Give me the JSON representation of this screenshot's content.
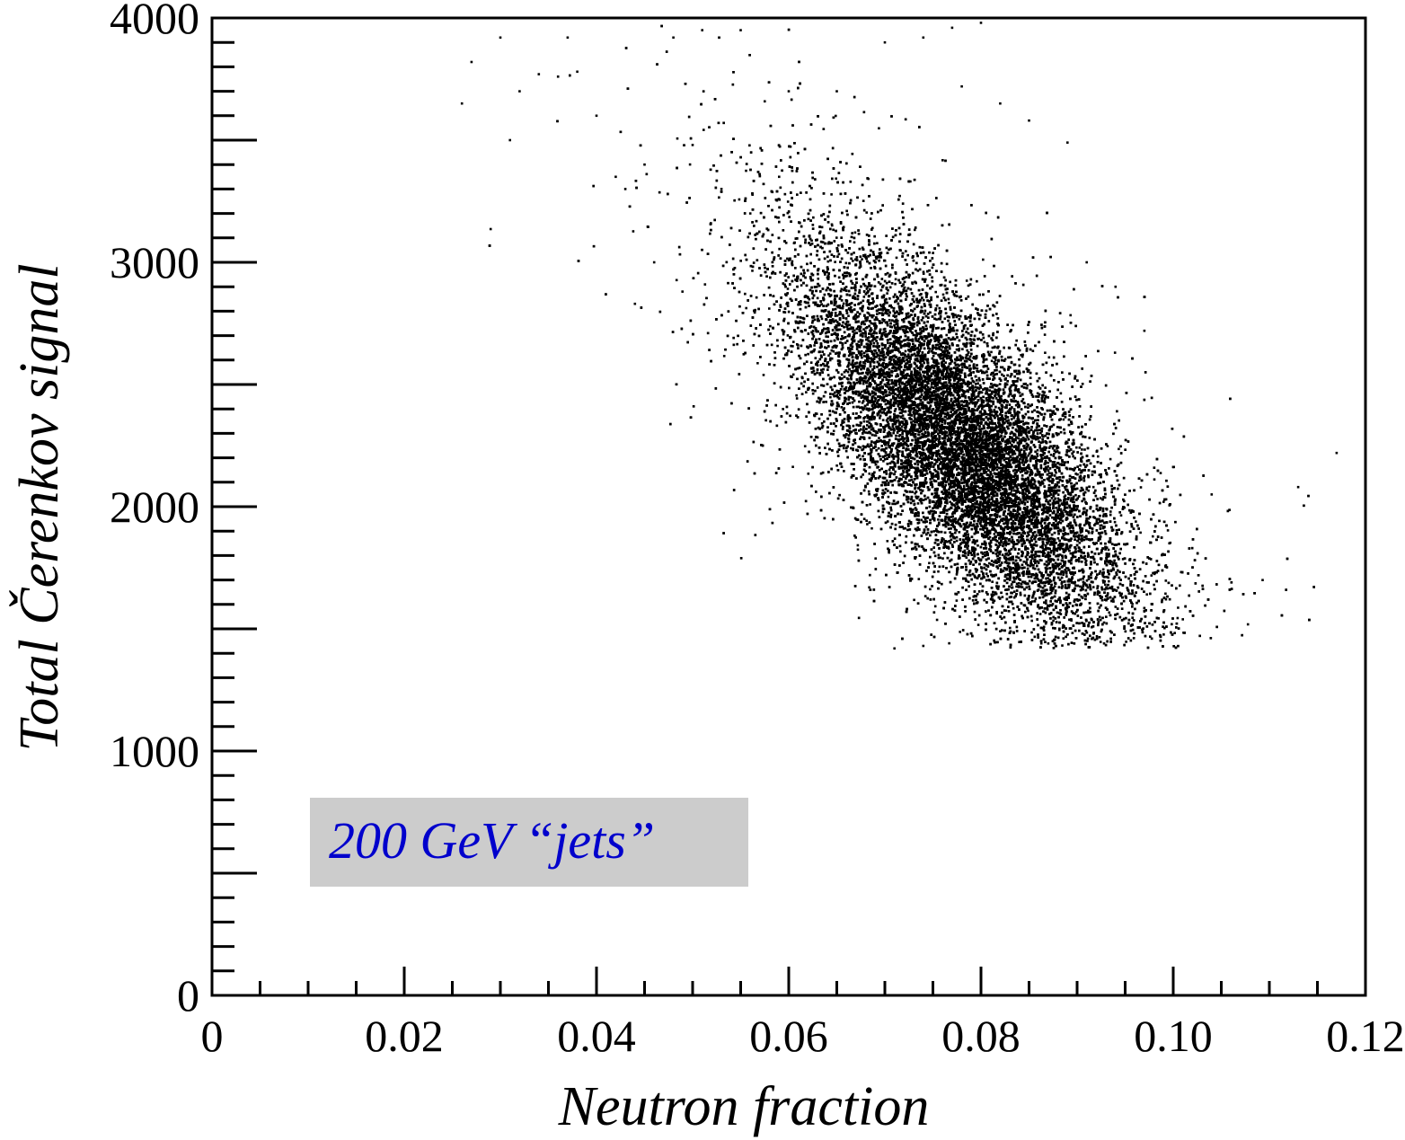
{
  "chart_data": {
    "type": "scatter",
    "title": "",
    "xlabel": "Neutron fraction",
    "ylabel": "Total Čerenkov signal",
    "xlim": [
      0,
      0.12
    ],
    "ylim": [
      0,
      4000
    ],
    "x_ticks": [
      "0",
      "0.02",
      "0.04",
      "0.06",
      "0.08",
      "0.10",
      "0.12"
    ],
    "x_tick_values": [
      0,
      0.02,
      0.04,
      0.06,
      0.08,
      0.1,
      0.12
    ],
    "y_ticks": [
      "0",
      "1000",
      "2000",
      "3000",
      "4000"
    ],
    "y_tick_values": [
      0,
      1000,
      2000,
      3000,
      4000
    ],
    "grid": false,
    "annotation": {
      "text": "200 GeV “jets”",
      "text_color": "#0000cc",
      "box_color": "#cccccc",
      "location": "lower-left"
    },
    "marker_color": "#000000",
    "distribution": {
      "description_of_main_cluster": {
        "center": [
          0.078,
          2250
        ],
        "sigma_x": 0.0085,
        "sigma_y": 380,
        "correlation": -0.72
      },
      "x_range_observed": [
        0.026,
        0.117
      ],
      "y_range_observed": [
        1420,
        3980
      ]
    },
    "series": [
      {
        "name": "",
        "points": [
          [
            0.026,
            3650
          ],
          [
            0.027,
            3820
          ],
          [
            0.03,
            3920
          ],
          [
            0.031,
            3500
          ],
          [
            0.032,
            3700
          ],
          [
            0.034,
            3770
          ],
          [
            0.036,
            3760
          ],
          [
            0.037,
            3920
          ],
          [
            0.038,
            3780
          ],
          [
            0.04,
            3600
          ],
          [
            0.042,
            3350
          ],
          [
            0.043,
            3300
          ],
          [
            0.045,
            3400
          ],
          [
            0.048,
            3920
          ],
          [
            0.051,
            3950
          ],
          [
            0.055,
            3950
          ],
          [
            0.06,
            3700
          ],
          [
            0.065,
            3700
          ],
          [
            0.07,
            3900
          ],
          [
            0.074,
            3920
          ],
          [
            0.077,
            3960
          ],
          [
            0.078,
            3720
          ],
          [
            0.08,
            3980
          ],
          [
            0.082,
            3650
          ],
          [
            0.085,
            3580
          ],
          [
            0.089,
            3490
          ],
          [
            0.091,
            3000
          ],
          [
            0.094,
            2900
          ],
          [
            0.097,
            2720
          ],
          [
            0.099,
            2020
          ],
          [
            0.104,
            2050
          ],
          [
            0.113,
            2080
          ],
          [
            0.117,
            2220
          ],
          [
            0.071,
            1420
          ],
          [
            0.074,
            1430
          ],
          [
            0.082,
            1490
          ],
          [
            0.087,
            1440
          ],
          [
            0.094,
            1590
          ],
          [
            0.098,
            1680
          ],
          [
            0.044,
            2830
          ],
          [
            0.046,
            3000
          ],
          [
            0.05,
            3480
          ],
          [
            0.053,
            3300
          ],
          [
            0.056,
            3200
          ],
          [
            0.059,
            3350
          ]
        ]
      }
    ]
  }
}
